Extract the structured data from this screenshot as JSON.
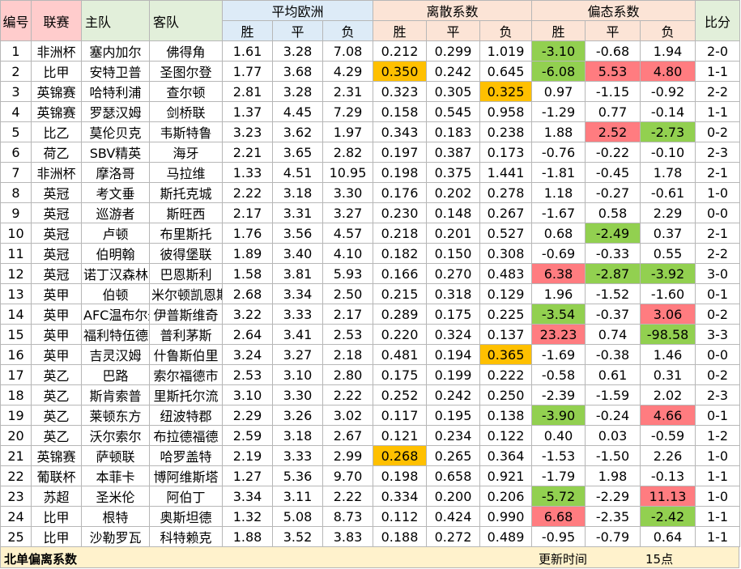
{
  "header": {
    "no": "编号",
    "league": "联赛",
    "home": "主队",
    "away": "客队",
    "avg_group": "平均欧洲",
    "disp_group": "离散系数",
    "skew_group": "偏态系数",
    "score": "比分",
    "win": "胜",
    "draw": "平",
    "lose": "负"
  },
  "rows": [
    {
      "no": "1",
      "league": "非洲杯",
      "home": "塞内加尔",
      "away": "佛得角",
      "a": [
        "1.61",
        "3.28",
        "7.08"
      ],
      "d": [
        "0.212",
        "0.299",
        "1.019"
      ],
      "s": [
        "-3.10",
        "-0.68",
        "1.94"
      ],
      "score": "2-0",
      "hl": {
        "s0": "green"
      }
    },
    {
      "no": "2",
      "league": "比甲",
      "home": "安特卫普",
      "away": "圣图尔登",
      "a": [
        "1.77",
        "3.68",
        "4.29"
      ],
      "d": [
        "0.350",
        "0.242",
        "0.645"
      ],
      "s": [
        "-6.08",
        "5.53",
        "4.80"
      ],
      "score": "1-1",
      "hl": {
        "d0": "orange",
        "s0": "green",
        "s1": "red",
        "s2": "red"
      }
    },
    {
      "no": "3",
      "league": "英锦赛",
      "home": "哈特利浦",
      "away": "查尔顿",
      "a": [
        "2.81",
        "3.28",
        "2.31"
      ],
      "d": [
        "0.323",
        "0.305",
        "0.325"
      ],
      "s": [
        "0.97",
        "-1.15",
        "-0.92"
      ],
      "score": "2-2",
      "hl": {
        "d2": "orange"
      }
    },
    {
      "no": "4",
      "league": "英锦赛",
      "home": "罗瑟汉姆",
      "away": "剑桥联",
      "a": [
        "1.37",
        "4.45",
        "7.29"
      ],
      "d": [
        "0.158",
        "0.545",
        "0.958"
      ],
      "s": [
        "-1.29",
        "0.77",
        "-0.14"
      ],
      "score": "1-1",
      "hl": {}
    },
    {
      "no": "5",
      "league": "比乙",
      "home": "莫伦贝克",
      "away": "韦斯特鲁",
      "a": [
        "3.23",
        "3.62",
        "1.97"
      ],
      "d": [
        "0.343",
        "0.183",
        "0.238"
      ],
      "s": [
        "1.88",
        "2.52",
        "-2.73"
      ],
      "score": "0-2",
      "hl": {
        "s1": "red",
        "s2": "green"
      }
    },
    {
      "no": "6",
      "league": "荷乙",
      "home": "SBV精英",
      "away": "海牙",
      "a": [
        "2.21",
        "3.65",
        "2.82"
      ],
      "d": [
        "0.197",
        "0.387",
        "0.173"
      ],
      "s": [
        "-0.76",
        "-0.22",
        "-0.10"
      ],
      "score": "2-3",
      "hl": {}
    },
    {
      "no": "7",
      "league": "非洲杯",
      "home": "摩洛哥",
      "away": "马拉维",
      "a": [
        "1.33",
        "4.51",
        "10.95"
      ],
      "d": [
        "0.198",
        "0.375",
        "1.441"
      ],
      "s": [
        "-1.81",
        "-0.45",
        "1.78"
      ],
      "score": "2-1",
      "hl": {}
    },
    {
      "no": "8",
      "league": "英冠",
      "home": "考文垂",
      "away": "斯托克城",
      "a": [
        "2.22",
        "3.18",
        "3.30"
      ],
      "d": [
        "0.176",
        "0.202",
        "0.278"
      ],
      "s": [
        "1.18",
        "-0.27",
        "-0.61"
      ],
      "score": "1-0",
      "hl": {}
    },
    {
      "no": "9",
      "league": "英冠",
      "home": "巡游者",
      "away": "斯旺西",
      "a": [
        "2.17",
        "3.31",
        "3.27"
      ],
      "d": [
        "0.230",
        "0.148",
        "0.267"
      ],
      "s": [
        "-1.67",
        "0.58",
        "2.29"
      ],
      "score": "0-0",
      "hl": {}
    },
    {
      "no": "10",
      "league": "英冠",
      "home": "卢顿",
      "away": "布里斯托",
      "a": [
        "1.76",
        "3.56",
        "4.57"
      ],
      "d": [
        "0.218",
        "0.201",
        "0.527"
      ],
      "s": [
        "0.68",
        "-2.49",
        "0.37"
      ],
      "score": "2-1",
      "hl": {
        "s1": "green"
      }
    },
    {
      "no": "11",
      "league": "英冠",
      "home": "伯明翰",
      "away": "彼得堡联",
      "a": [
        "1.89",
        "3.40",
        "4.10"
      ],
      "d": [
        "0.182",
        "0.150",
        "0.308"
      ],
      "s": [
        "-0.69",
        "-0.33",
        "0.55"
      ],
      "score": "2-2",
      "hl": {}
    },
    {
      "no": "12",
      "league": "英冠",
      "home": "诺丁汉森林",
      "away": "巴恩斯利",
      "a": [
        "1.58",
        "3.81",
        "5.93"
      ],
      "d": [
        "0.166",
        "0.270",
        "0.483"
      ],
      "s": [
        "6.38",
        "-2.87",
        "-3.92"
      ],
      "score": "3-0",
      "hl": {
        "s0": "red",
        "s1": "green",
        "s2": "green"
      }
    },
    {
      "no": "13",
      "league": "英甲",
      "home": "伯顿",
      "away": "米尔顿凯恩斯",
      "a": [
        "2.68",
        "3.34",
        "2.50"
      ],
      "d": [
        "0.215",
        "0.318",
        "0.129"
      ],
      "s": [
        "1.96",
        "-1.52",
        "-1.60"
      ],
      "score": "0-1",
      "hl": {}
    },
    {
      "no": "14",
      "league": "英甲",
      "home": "AFC温布尔登",
      "away": "伊普斯维奇",
      "a": [
        "3.22",
        "3.33",
        "2.17"
      ],
      "d": [
        "0.289",
        "0.175",
        "0.225"
      ],
      "s": [
        "-3.54",
        "-0.37",
        "3.06"
      ],
      "score": "0-2",
      "hl": {
        "s0": "green",
        "s2": "red"
      }
    },
    {
      "no": "15",
      "league": "英甲",
      "home": "福利特伍德",
      "away": "普利茅斯",
      "a": [
        "2.64",
        "3.41",
        "2.53"
      ],
      "d": [
        "0.220",
        "0.324",
        "0.137"
      ],
      "s": [
        "23.23",
        "0.74",
        "-98.58"
      ],
      "score": "3-3",
      "hl": {
        "s0": "red",
        "s2": "green"
      }
    },
    {
      "no": "16",
      "league": "英甲",
      "home": "吉灵汉姆",
      "away": "什鲁斯伯里",
      "a": [
        "3.24",
        "3.27",
        "2.18"
      ],
      "d": [
        "0.481",
        "0.194",
        "0.365"
      ],
      "s": [
        "-1.69",
        "-0.38",
        "1.46"
      ],
      "score": "0-0",
      "hl": {
        "d2": "orange"
      }
    },
    {
      "no": "17",
      "league": "英乙",
      "home": "巴路",
      "away": "索尔福德市",
      "a": [
        "2.53",
        "3.10",
        "2.80"
      ],
      "d": [
        "0.175",
        "0.199",
        "0.222"
      ],
      "s": [
        "-0.58",
        "0.61",
        "0.31"
      ],
      "score": "0-2",
      "hl": {}
    },
    {
      "no": "18",
      "league": "英乙",
      "home": "斯肯索普",
      "away": "里斯托尔流",
      "a": [
        "3.10",
        "3.30",
        "2.22"
      ],
      "d": [
        "0.252",
        "0.242",
        "0.250"
      ],
      "s": [
        "-2.39",
        "-1.59",
        "2.02"
      ],
      "score": "2-3",
      "hl": {}
    },
    {
      "no": "19",
      "league": "英乙",
      "home": "莱顿东方",
      "away": "纽波特郡",
      "a": [
        "2.29",
        "3.26",
        "3.02"
      ],
      "d": [
        "0.117",
        "0.195",
        "0.138"
      ],
      "s": [
        "-3.90",
        "-0.24",
        "4.66"
      ],
      "score": "0-1",
      "hl": {
        "s0": "green",
        "s2": "red"
      }
    },
    {
      "no": "20",
      "league": "英乙",
      "home": "沃尔索尔",
      "away": "布拉德福德",
      "a": [
        "2.59",
        "3.18",
        "2.67"
      ],
      "d": [
        "0.121",
        "0.234",
        "0.122"
      ],
      "s": [
        "0.40",
        "0.03",
        "-0.59"
      ],
      "score": "1-2",
      "hl": {}
    },
    {
      "no": "21",
      "league": "英锦赛",
      "home": "萨顿联",
      "away": "哈罗盖特",
      "a": [
        "2.19",
        "3.33",
        "2.99"
      ],
      "d": [
        "0.268",
        "0.265",
        "0.364"
      ],
      "s": [
        "-1.53",
        "-1.50",
        "2.26"
      ],
      "score": "1-0",
      "hl": {
        "d0": "orange"
      }
    },
    {
      "no": "22",
      "league": "葡联杯",
      "home": "本菲卡",
      "away": "博阿维斯塔",
      "a": [
        "1.27",
        "5.36",
        "9.70"
      ],
      "d": [
        "0.198",
        "0.658",
        "0.921"
      ],
      "s": [
        "-1.79",
        "1.98",
        "-0.13"
      ],
      "score": "1-1",
      "hl": {}
    },
    {
      "no": "23",
      "league": "苏超",
      "home": "圣米伦",
      "away": "阿伯丁",
      "a": [
        "3.34",
        "3.11",
        "2.22"
      ],
      "d": [
        "0.334",
        "0.200",
        "0.206"
      ],
      "s": [
        "-5.72",
        "-2.29",
        "11.13"
      ],
      "score": "1-0",
      "hl": {
        "s0": "green",
        "s2": "red"
      }
    },
    {
      "no": "24",
      "league": "比甲",
      "home": "根特",
      "away": "奥斯坦德",
      "a": [
        "1.32",
        "5.08",
        "8.73"
      ],
      "d": [
        "0.112",
        "0.424",
        "0.990"
      ],
      "s": [
        "6.68",
        "-2.35",
        "-2.42"
      ],
      "score": "1-1",
      "hl": {
        "s0": "red",
        "s2": "green"
      }
    },
    {
      "no": "25",
      "league": "比甲",
      "home": "沙勒罗瓦",
      "away": "科特赖克",
      "a": [
        "1.88",
        "3.52",
        "3.83"
      ],
      "d": [
        "0.188",
        "0.272",
        "0.489"
      ],
      "s": [
        "-0.95",
        "-0.79",
        "0.64"
      ],
      "score": "1-1",
      "hl": {}
    }
  ],
  "footer": {
    "title": "北单偏离系数",
    "update_label": "更新时间",
    "update_value": "15点"
  },
  "colors": {
    "orange": "#ffc000",
    "red": "#ff7c80",
    "green": "#92d050"
  }
}
